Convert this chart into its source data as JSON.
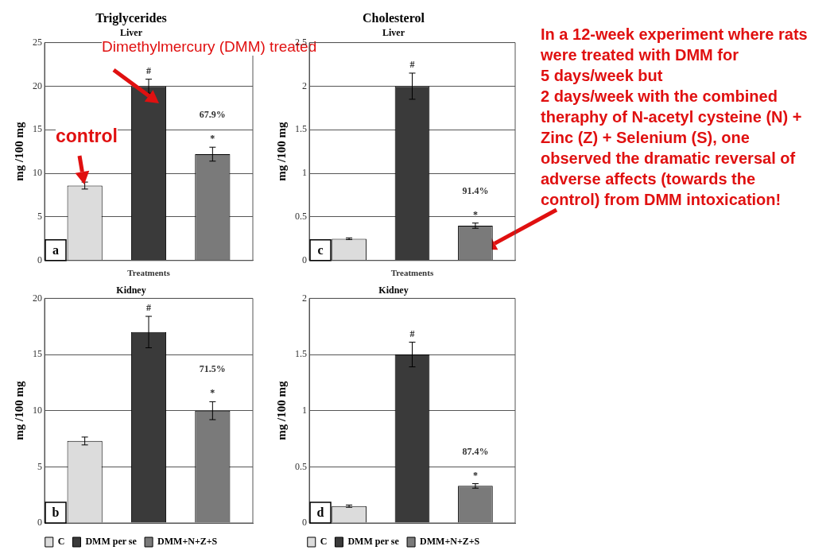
{
  "chart_data": [
    {
      "type": "bar",
      "title": "Triglycerides",
      "subtitle": "Liver",
      "xlabel": "Treatments",
      "ylabel": "mg /100 mg",
      "categories": [
        null
      ],
      "series": [
        {
          "color": "#dcdcdc",
          "values": [
            8.6
          ],
          "errors": [
            0.4
          ]
        },
        {
          "color": "#3a3a3a",
          "values": [
            20
          ],
          "errors": [
            0.8
          ],
          "value_labels": [
            "#"
          ]
        },
        {
          "color": "#7a7a7a",
          "values": [
            12.2
          ],
          "errors": [
            0.8
          ],
          "value_labels": [
            "*"
          ]
        }
      ],
      "ylim": [
        0,
        25
      ],
      "yticks": [
        0,
        5,
        10,
        15,
        20,
        25
      ],
      "grid": "y",
      "tick_labels": "y",
      "annotations": [
        "a",
        "67.9%",
        "control",
        "Dimethylmercury (DMM) treated"
      ]
    },
    {
      "type": "bar",
      "title": "Cholesterol",
      "subtitle": "Liver",
      "xlabel": "Treatments",
      "ylabel": "mg /100 mg",
      "categories": [
        null
      ],
      "series": [
        {
          "color": "#dcdcdc",
          "values": [
            0.25
          ],
          "errors": [
            0.01
          ]
        },
        {
          "color": "#3a3a3a",
          "values": [
            2.0
          ],
          "errors": [
            0.15
          ],
          "value_labels": [
            "#"
          ]
        },
        {
          "color": "#7a7a7a",
          "values": [
            0.4
          ],
          "errors": [
            0.03
          ],
          "value_labels": [
            "*"
          ]
        }
      ],
      "ylim": [
        0,
        2.5
      ],
      "yticks": [
        0,
        0.5,
        1,
        1.5,
        2,
        2.5
      ],
      "grid": "y",
      "tick_labels": "y",
      "annotations": [
        "c",
        "91.4%"
      ]
    },
    {
      "type": "bar",
      "title": "Kidney",
      "ylabel": "mg /100 mg",
      "categories": [
        null
      ],
      "series": [
        {
          "name": "C",
          "color": "#dcdcdc",
          "values": [
            7.3
          ],
          "errors": [
            0.35
          ]
        },
        {
          "name": "DMM per se",
          "color": "#3a3a3a",
          "values": [
            17
          ],
          "errors": [
            1.4
          ],
          "value_labels": [
            "#"
          ]
        },
        {
          "name": "DMM+N+Z+S",
          "color": "#7a7a7a",
          "values": [
            10
          ],
          "errors": [
            0.8
          ],
          "value_labels": [
            "*"
          ]
        }
      ],
      "ylim": [
        0,
        20
      ],
      "yticks": [
        0,
        5,
        10,
        15,
        20
      ],
      "grid": "y",
      "tick_labels": "y",
      "legend": "bottom",
      "annotations": [
        "b",
        "71.5%"
      ]
    },
    {
      "type": "bar",
      "title": "Kidney",
      "ylabel": "mg /100 mg",
      "categories": [
        null
      ],
      "series": [
        {
          "name": "C",
          "color": "#dcdcdc",
          "values": [
            0.15
          ],
          "errors": [
            0.01
          ]
        },
        {
          "name": "DMM per se",
          "color": "#3a3a3a",
          "values": [
            1.5
          ],
          "errors": [
            0.11
          ],
          "value_labels": [
            "#"
          ]
        },
        {
          "name": "DMM+N+Z+S",
          "color": "#7a7a7a",
          "values": [
            0.33
          ],
          "errors": [
            0.02
          ],
          "value_labels": [
            "*"
          ]
        }
      ],
      "ylim": [
        0,
        2
      ],
      "yticks": [
        0,
        0.5,
        1,
        1.5,
        2
      ],
      "grid": "y",
      "tick_labels": "y",
      "legend": "bottom",
      "annotations": [
        "d",
        "87.4%"
      ]
    },
    {
      "type": "other",
      "annotations": [
        "In a 12-week experiment where rats were treated with DMM for\n5 days/week but\n2 days/week with the combined theraphy of N-acetyl cysteine (N) + Zinc (Z) + Selenium (S), one observed the dramatic reversal of adverse affects (towards the control) from DMM intoxication!"
      ]
    }
  ]
}
